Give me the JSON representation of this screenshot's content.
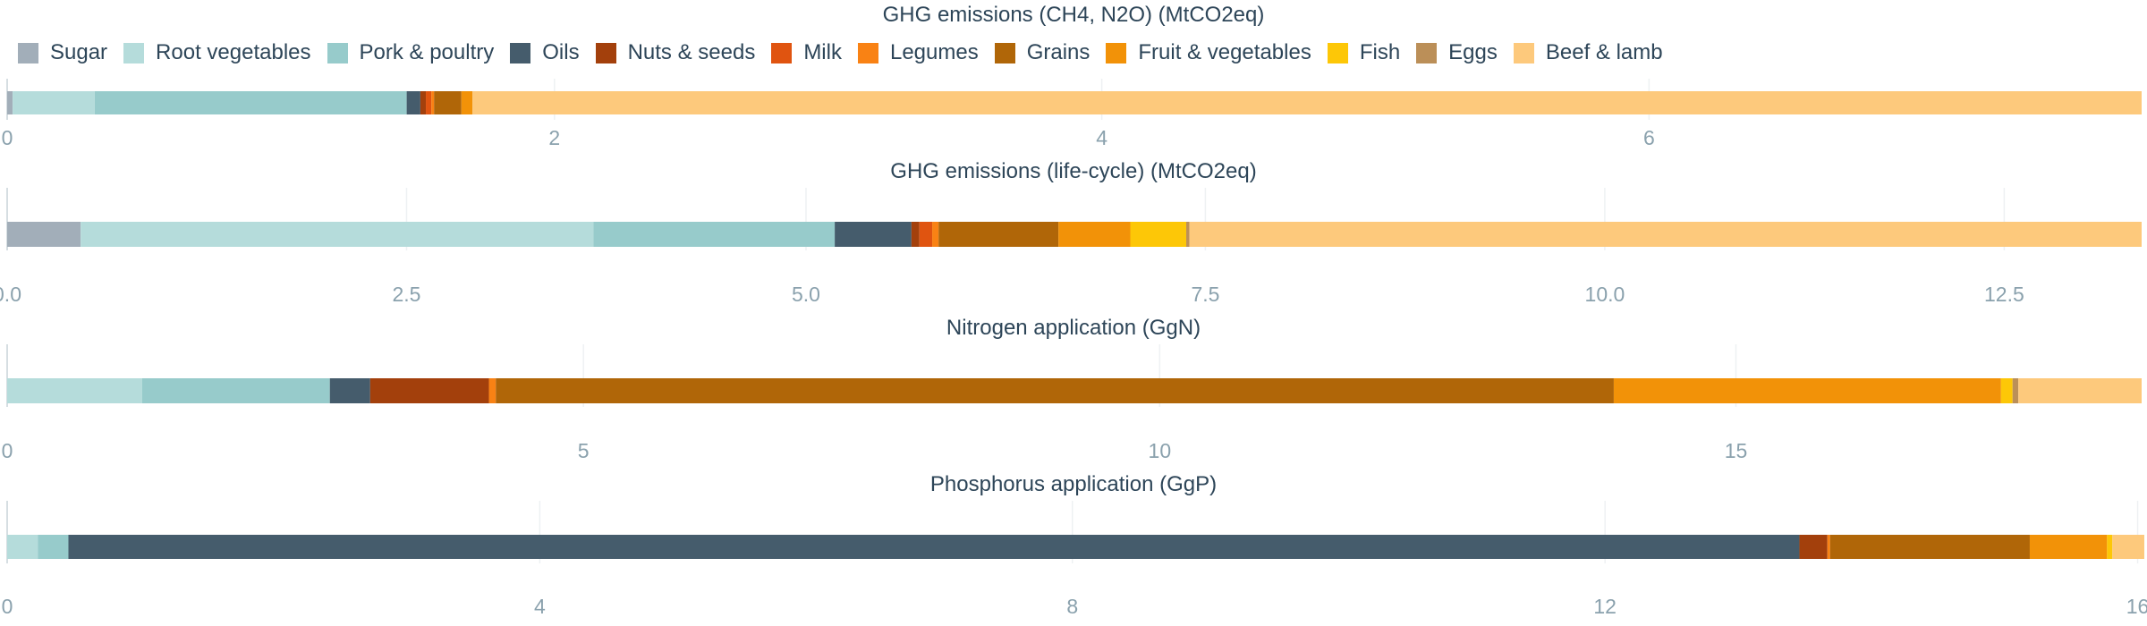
{
  "legend": [
    {
      "name": "Sugar",
      "color": "#a2aeb9"
    },
    {
      "name": "Root vegetables",
      "color": "#b5dcdb"
    },
    {
      "name": "Pork & poultry",
      "color": "#97cbcb"
    },
    {
      "name": "Oils",
      "color": "#455c6c"
    },
    {
      "name": "Nuts & seeds",
      "color": "#a3400c"
    },
    {
      "name": "Milk",
      "color": "#e05410"
    },
    {
      "name": "Legumes",
      "color": "#f98214"
    },
    {
      "name": "Grains",
      "color": "#b06608"
    },
    {
      "name": "Fruit & vegetables",
      "color": "#f29208"
    },
    {
      "name": "Fish",
      "color": "#fdc707"
    },
    {
      "name": "Eggs",
      "color": "#bb8f58"
    },
    {
      "name": "Beef & lamb",
      "color": "#fdc97c"
    }
  ],
  "chart_data": [
    {
      "type": "bar",
      "orientation": "horizontal",
      "stacked": true,
      "title": "GHG emissions (CH4, N2O) (MtCO2eq)",
      "xlim": [
        0,
        7.8
      ],
      "xticks": [
        0,
        2,
        4,
        6
      ],
      "tick_labels": [
        "0",
        "2",
        "4",
        "6"
      ],
      "grid": true,
      "series": [
        {
          "name": "Sugar",
          "value": 0.02
        },
        {
          "name": "Root vegetables",
          "value": 0.3
        },
        {
          "name": "Pork & poultry",
          "value": 1.14
        },
        {
          "name": "Oils",
          "value": 0.05
        },
        {
          "name": "Nuts & seeds",
          "value": 0.02
        },
        {
          "name": "Milk",
          "value": 0.02
        },
        {
          "name": "Legumes",
          "value": 0.01
        },
        {
          "name": "Grains",
          "value": 0.1
        },
        {
          "name": "Fruit & vegetables",
          "value": 0.04
        },
        {
          "name": "Fish",
          "value": 0.0
        },
        {
          "name": "Eggs",
          "value": 0.0
        },
        {
          "name": "Beef & lamb",
          "value": 6.1
        }
      ]
    },
    {
      "type": "bar",
      "orientation": "horizontal",
      "stacked": true,
      "title": "GHG emissions (life-cycle) (MtCO2eq)",
      "xlim": [
        0,
        13.36
      ],
      "xticks": [
        0,
        2.5,
        5,
        7.5,
        10,
        12.5
      ],
      "tick_labels": [
        "0.0",
        "2.5",
        "5.0",
        "7.5",
        "10.0",
        "12.5"
      ],
      "grid": true,
      "series": [
        {
          "name": "Sugar",
          "value": 0.46
        },
        {
          "name": "Root vegetables",
          "value": 3.21
        },
        {
          "name": "Pork & poultry",
          "value": 1.51
        },
        {
          "name": "Oils",
          "value": 0.48
        },
        {
          "name": "Nuts & seeds",
          "value": 0.05
        },
        {
          "name": "Milk",
          "value": 0.08
        },
        {
          "name": "Legumes",
          "value": 0.04
        },
        {
          "name": "Grains",
          "value": 0.75
        },
        {
          "name": "Fruit & vegetables",
          "value": 0.45
        },
        {
          "name": "Fish",
          "value": 0.35
        },
        {
          "name": "Eggs",
          "value": 0.02
        },
        {
          "name": "Beef & lamb",
          "value": 5.96
        }
      ]
    },
    {
      "type": "bar",
      "orientation": "horizontal",
      "stacked": true,
      "title": "Nitrogen application (GgN)",
      "xlim": [
        0,
        18.52
      ],
      "xticks": [
        0,
        5,
        10,
        15
      ],
      "tick_labels": [
        "0",
        "5",
        "10",
        "15"
      ],
      "grid": true,
      "series": [
        {
          "name": "Sugar",
          "value": 0.0
        },
        {
          "name": "Root vegetables",
          "value": 1.17
        },
        {
          "name": "Pork & poultry",
          "value": 1.63
        },
        {
          "name": "Oils",
          "value": 0.35
        },
        {
          "name": "Nuts & seeds",
          "value": 1.03
        },
        {
          "name": "Milk",
          "value": 0.0
        },
        {
          "name": "Legumes",
          "value": 0.06
        },
        {
          "name": "Grains",
          "value": 9.7
        },
        {
          "name": "Fruit & vegetables",
          "value": 3.36
        },
        {
          "name": "Fish",
          "value": 0.1
        },
        {
          "name": "Eggs",
          "value": 0.05
        },
        {
          "name": "Beef & lamb",
          "value": 1.07
        }
      ]
    },
    {
      "type": "bar",
      "orientation": "horizontal",
      "stacked": true,
      "title": "Phosphorus application (GgP)",
      "xlim": [
        0,
        16.03
      ],
      "xticks": [
        0,
        4,
        8,
        12,
        16
      ],
      "tick_labels": [
        "0",
        "4",
        "8",
        "12",
        "16"
      ],
      "grid": true,
      "series": [
        {
          "name": "Sugar",
          "value": 0.0
        },
        {
          "name": "Root vegetables",
          "value": 0.23
        },
        {
          "name": "Pork & poultry",
          "value": 0.23
        },
        {
          "name": "Oils",
          "value": 13.0
        },
        {
          "name": "Nuts & seeds",
          "value": 0.21
        },
        {
          "name": "Milk",
          "value": 0.0
        },
        {
          "name": "Legumes",
          "value": 0.02
        },
        {
          "name": "Grains",
          "value": 1.5
        },
        {
          "name": "Fruit & vegetables",
          "value": 0.58
        },
        {
          "name": "Fish",
          "value": 0.04
        },
        {
          "name": "Eggs",
          "value": 0.0
        },
        {
          "name": "Beef & lamb",
          "value": 0.24
        }
      ]
    }
  ]
}
